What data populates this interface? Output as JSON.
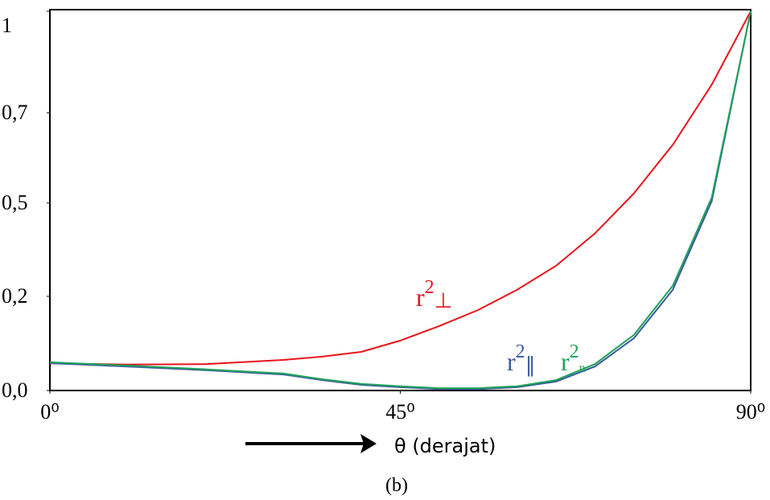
{
  "chart_data": {
    "type": "line",
    "x": [
      0,
      10,
      20,
      30,
      35,
      40,
      45,
      50,
      55,
      60,
      65,
      70,
      75,
      80,
      85,
      90
    ],
    "series": [
      {
        "color": "#e8141c",
        "values": [
          0.058,
          0.055,
          0.056,
          0.065,
          0.072,
          0.082,
          0.106,
          0.137,
          0.171,
          0.221,
          0.298,
          0.402,
          0.521,
          0.629,
          0.783,
          1
        ]
      },
      {
        "color": "#3a5a9c",
        "values": [
          0.058,
          0.051,
          0.043,
          0.034,
          0.022,
          0.012,
          0.007,
          0.003,
          0.003,
          0.007,
          0.019,
          0.051,
          0.111,
          0.221,
          0.504,
          1
        ]
      },
      {
        "color": "#1fa35a",
        "values": [
          0.06,
          0.053,
          0.045,
          0.036,
          0.024,
          0.014,
          0.009,
          0.005,
          0.005,
          0.009,
          0.022,
          0.056,
          0.118,
          0.234,
          0.512,
          1
        ]
      }
    ],
    "xlim": [
      0,
      90
    ],
    "xticks": [
      {
        "value": 0,
        "label": "0⁰"
      },
      {
        "value": 45,
        "label": "45⁰"
      },
      {
        "value": 90,
        "label": "90⁰"
      }
    ],
    "ylim": [
      0,
      1
    ],
    "yticks": [
      {
        "value": 0,
        "label": "0,0"
      },
      {
        "value": 0.2,
        "label": "0,2"
      },
      {
        "value": 0.5,
        "label": "0,5"
      },
      {
        "value": 0.7,
        "label": "0,7"
      },
      1
    ],
    "annotations": [
      {
        "base": "r",
        "sup": "2",
        "sub": "⊥",
        "color": "#e8141c"
      },
      {
        "base": "r",
        "sup": "2",
        "sub": "∥",
        "color": "#3a5a9c"
      },
      {
        "base": "r",
        "sup": "2",
        "sub": "n",
        "color": "#1fa35a"
      }
    ],
    "xlabel": "θ (derajat)",
    "caption": "(b)"
  }
}
